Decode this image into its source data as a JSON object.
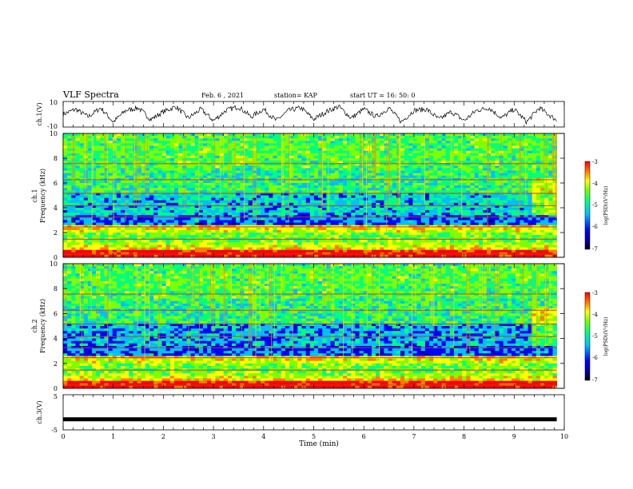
{
  "header": {
    "title": "VLF Spectra",
    "date": "Feb. 6 , 2021",
    "station": "station= KAP",
    "start": "start  UT =   16: 50: 0"
  },
  "chart_data": [
    {
      "type": "line",
      "panel": "ch1-waveform",
      "ylabel": "ch.1(V)",
      "ylim": [
        -10,
        10
      ],
      "yticks": [
        "10",
        "-10"
      ],
      "x": [
        0,
        0.25,
        0.5,
        0.75,
        1,
        1.25,
        1.5,
        1.75,
        2,
        2.25,
        2.5,
        2.75,
        3,
        3.25,
        3.5,
        3.75,
        4,
        4.25,
        4.5,
        4.75,
        5,
        5.25,
        5.5,
        5.75,
        6,
        6.25,
        6.5,
        6.75,
        7,
        7.25,
        7.5,
        7.75,
        8,
        8.25,
        8.5,
        8.75,
        9,
        9.25,
        9.5,
        9.75
      ],
      "values": [
        0,
        4,
        -2,
        5,
        -6,
        3,
        5,
        -4,
        2,
        6,
        -3,
        4,
        -5,
        3,
        6,
        -2,
        4,
        -5,
        3,
        5,
        -4,
        2,
        6,
        -3,
        4,
        -2,
        5,
        -6,
        3,
        4,
        -4,
        2,
        -5,
        3,
        5,
        -3,
        4,
        -6,
        5,
        -2
      ],
      "color": "#000000"
    },
    {
      "type": "heatmap",
      "panel": "ch1-spectrogram",
      "ylabel": [
        "ch.1",
        "Frequency (kHz)"
      ],
      "ylim": [
        0,
        10
      ],
      "yticks": [
        "0",
        "2",
        "4",
        "6",
        "8",
        "10"
      ],
      "colorbar": {
        "ticks": [
          "-3",
          "-4",
          "-5",
          "-6",
          "-7"
        ],
        "label": "log(PSD)(V²/Hz)"
      },
      "colormap": [
        "#00008b",
        "#0000ff",
        "#00bfff",
        "#00ff7f",
        "#7fff00",
        "#ffff00",
        "#ff7f00",
        "#ff0000"
      ]
    },
    {
      "type": "heatmap",
      "panel": "ch2-spectrogram",
      "ylabel": [
        "ch.2",
        "Frequency (kHz)"
      ],
      "ylim": [
        0,
        10
      ],
      "yticks": [
        "0",
        "2",
        "4",
        "6",
        "8",
        "10"
      ],
      "colorbar": {
        "ticks": [
          "-3",
          "-4",
          "-5",
          "-6",
          "-7"
        ],
        "label": "log(PSD)(V²/Hz)"
      },
      "colormap": [
        "#00008b",
        "#0000ff",
        "#00bfff",
        "#00ff7f",
        "#7fff00",
        "#ffff00",
        "#ff7f00",
        "#ff0000"
      ]
    },
    {
      "type": "line",
      "panel": "ch3-waveform",
      "ylabel": "ch.3(V)",
      "ylim": [
        -5,
        5
      ],
      "yticks": [
        "5",
        "-5"
      ],
      "x": [
        0,
        10
      ],
      "values": [
        -2,
        -2
      ],
      "color": "#000000"
    }
  ],
  "xaxis": {
    "label": "Time  (min)",
    "ticks": [
      "0",
      "1",
      "2",
      "3",
      "4",
      "5",
      "6",
      "7",
      "8",
      "9",
      "10"
    ],
    "xlim": [
      0,
      10
    ]
  }
}
